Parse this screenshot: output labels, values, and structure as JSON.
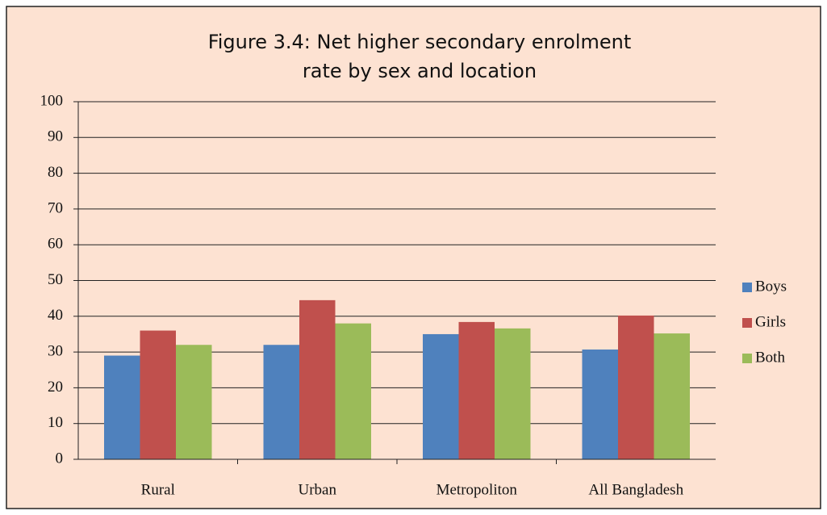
{
  "chart_data": {
    "type": "bar",
    "title": "Figure 3.4: Net higher secondary enrolment rate by sex and location",
    "categories": [
      "Rural",
      "Urban",
      "Metropoliton",
      "All Bangladesh"
    ],
    "series": [
      {
        "name": "Boys",
        "color": "#4f81bd",
        "values": [
          29,
          32,
          35,
          30.7
        ]
      },
      {
        "name": "Girls",
        "color": "#c0504d",
        "values": [
          36,
          44.5,
          38.4,
          40.2
        ]
      },
      {
        "name": "Both",
        "color": "#9bbb59",
        "values": [
          32,
          38,
          36.6,
          35.2
        ]
      }
    ],
    "ylim": [
      0,
      100
    ],
    "yticks": [
      0,
      10,
      20,
      30,
      40,
      50,
      60,
      70,
      80,
      90,
      100
    ],
    "grid": true,
    "legend": "right"
  }
}
